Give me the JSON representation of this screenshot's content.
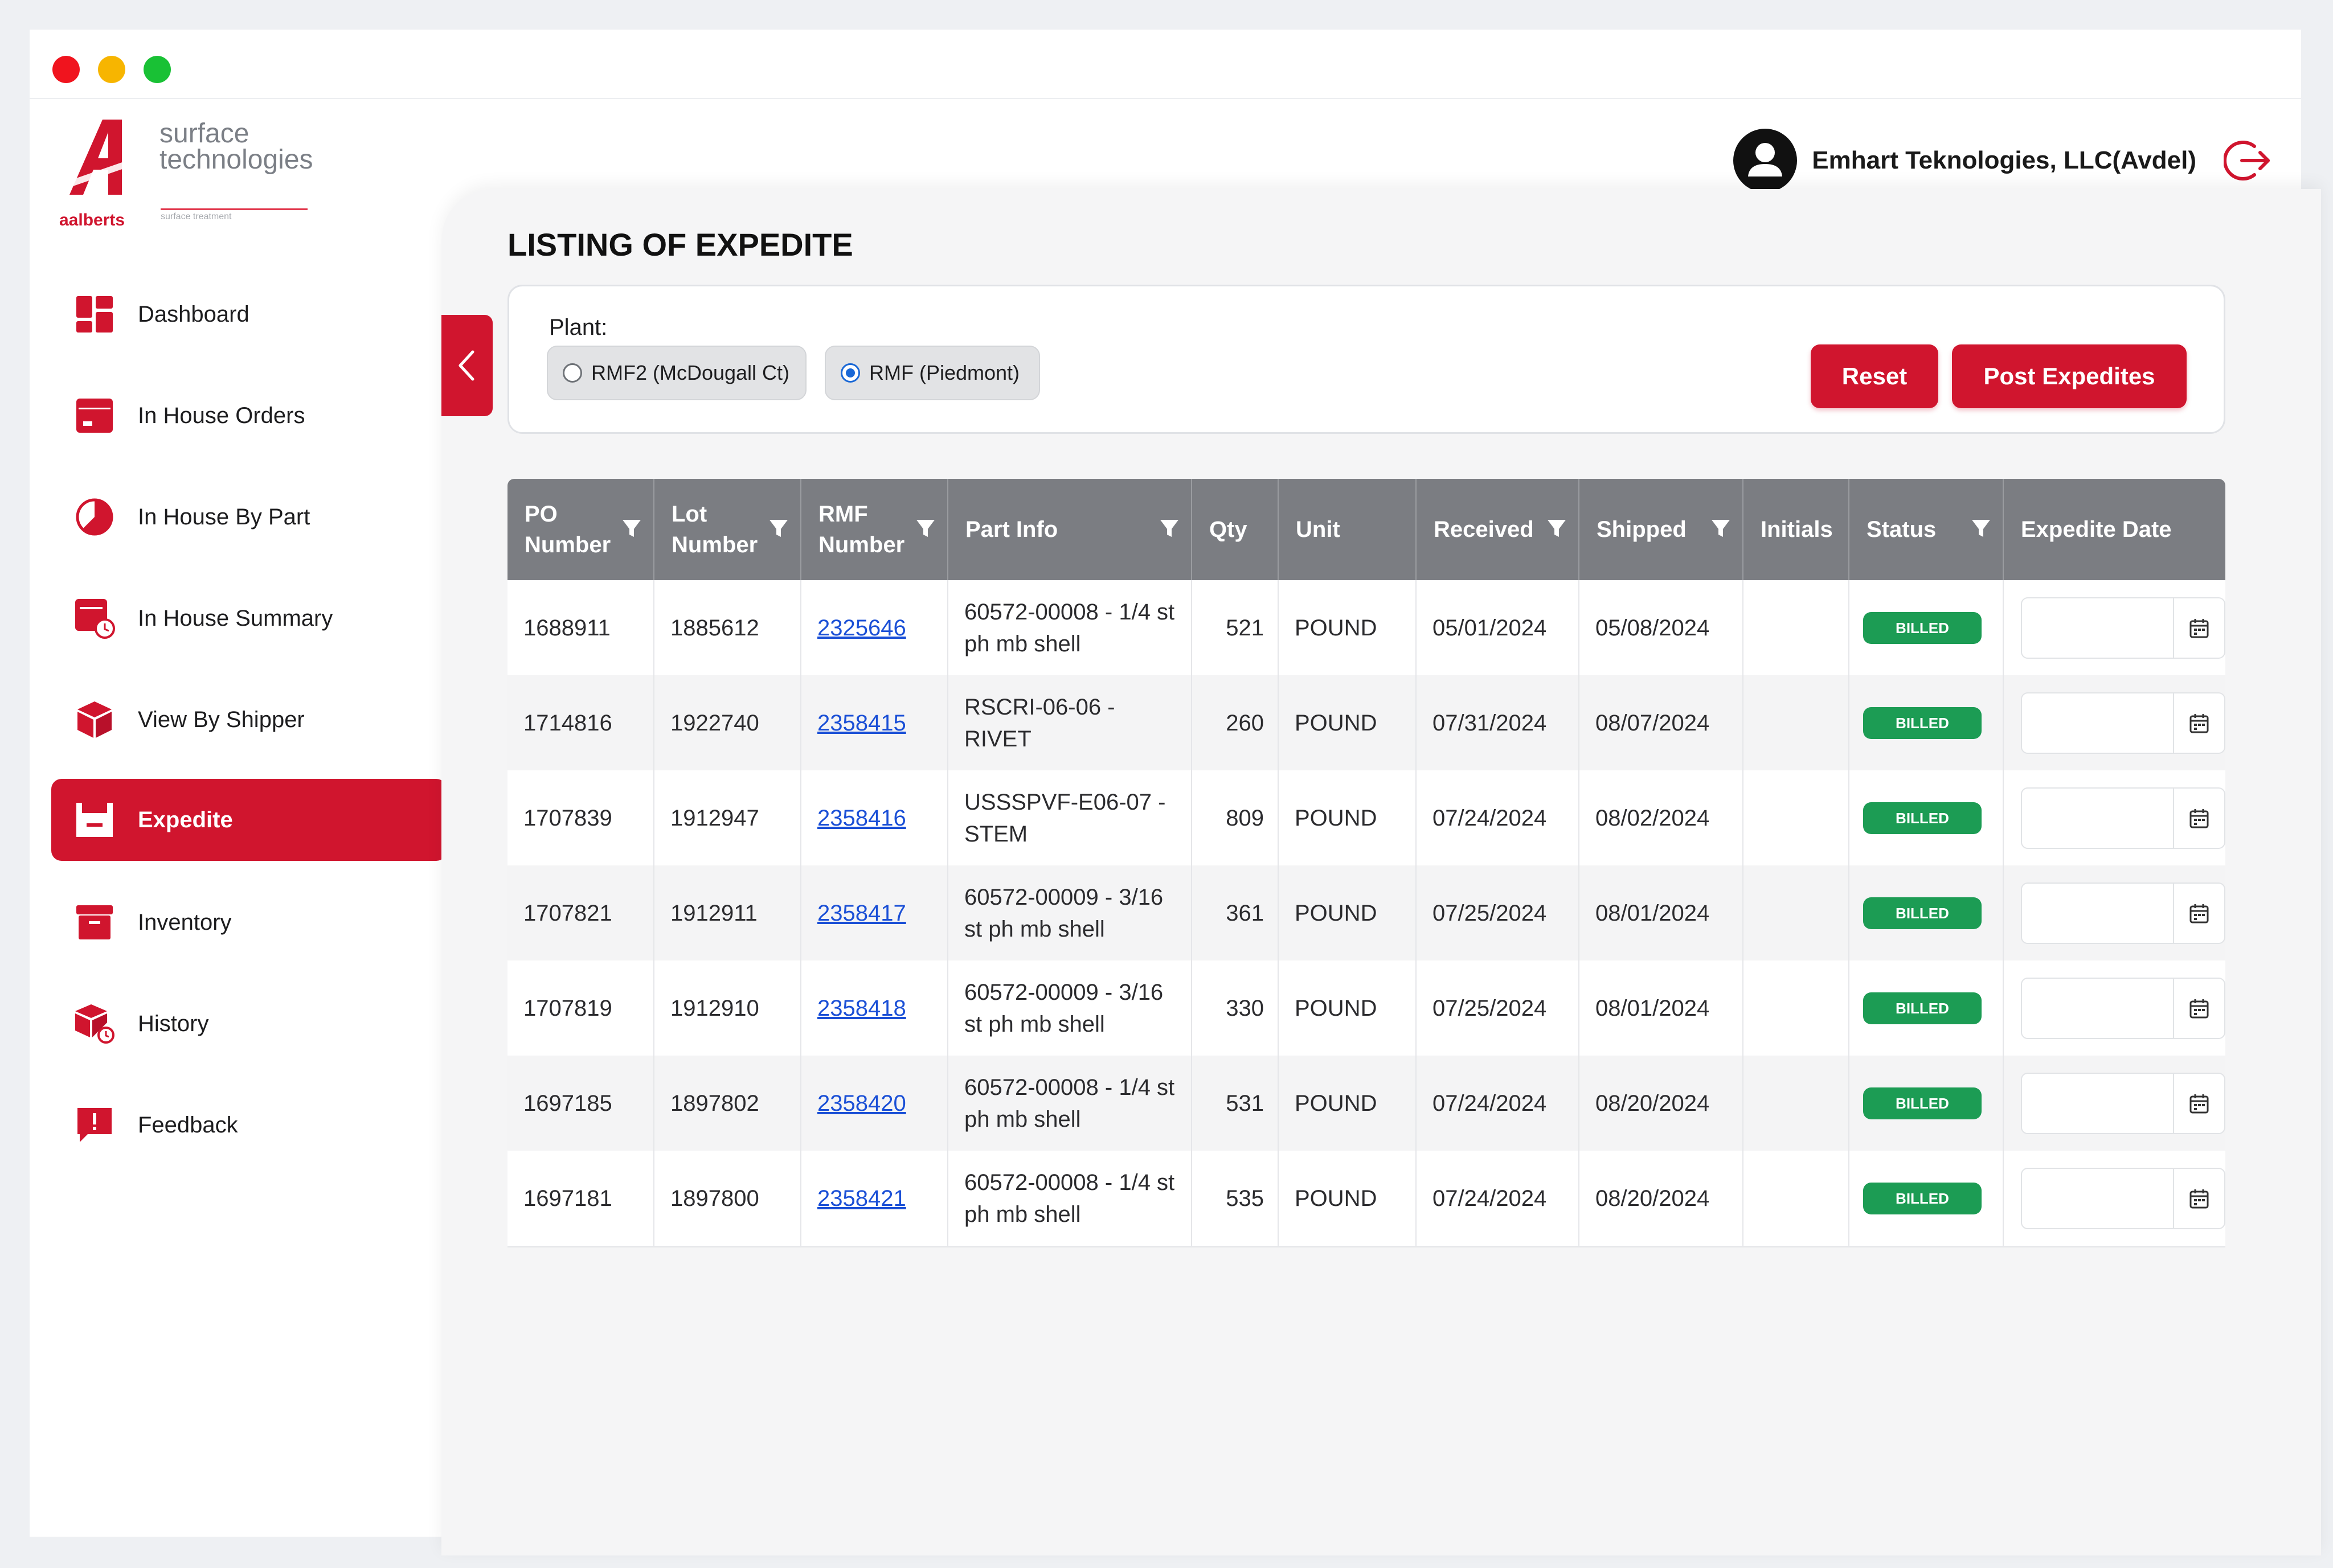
{
  "app": {
    "brand": "aalberts",
    "logo_line1": "surface",
    "logo_line2": "technologies",
    "logo_sub": "surface treatment",
    "company": "Emhart Teknologies, LLC(Avdel)",
    "accent": "#d0152e"
  },
  "sidebar": {
    "items": [
      {
        "label": "Dashboard",
        "icon": "dashboard-icon",
        "active": false
      },
      {
        "label": "In House Orders",
        "icon": "orders-box-icon",
        "active": false
      },
      {
        "label": "In House By Part",
        "icon": "pie-chart-icon",
        "active": false
      },
      {
        "label": "In House Summary",
        "icon": "summary-clock-icon",
        "active": false
      },
      {
        "label": "View By Shipper",
        "icon": "package-cube-icon",
        "active": false
      },
      {
        "label": "Expedite",
        "icon": "basket-icon",
        "active": true
      },
      {
        "label": "Inventory",
        "icon": "archive-box-icon",
        "active": false
      },
      {
        "label": "History",
        "icon": "history-cube-icon",
        "active": false
      },
      {
        "label": "Feedback",
        "icon": "feedback-alert-icon",
        "active": false
      }
    ]
  },
  "page": {
    "title": "LISTING OF EXPEDITE",
    "plant_label": "Plant:",
    "plant_options": [
      {
        "label": "RMF2 (McDougall Ct)",
        "selected": false
      },
      {
        "label": "RMF (Piedmont)",
        "selected": true
      }
    ],
    "reset_label": "Reset",
    "post_label": "Post Expedites"
  },
  "table": {
    "columns": [
      {
        "label": "PO Number",
        "filter": true
      },
      {
        "label": "Lot Number",
        "filter": true
      },
      {
        "label": "RMF Number",
        "filter": true
      },
      {
        "label": "Part Info",
        "filter": true
      },
      {
        "label": "Qty",
        "filter": false
      },
      {
        "label": "Unit",
        "filter": false
      },
      {
        "label": "Received",
        "filter": true
      },
      {
        "label": "Shipped",
        "filter": true
      },
      {
        "label": "Initials",
        "filter": false
      },
      {
        "label": "Status",
        "filter": true
      },
      {
        "label": "Expedite Date",
        "filter": false
      }
    ],
    "rows": [
      {
        "po": "1688911",
        "lot": "1885612",
        "rmf": "2325646",
        "part": "60572-00008 - 1/4 st ph mb shell",
        "qty": "521",
        "unit": "POUND",
        "received": "05/01/2024",
        "shipped": "05/08/2024",
        "initials": "",
        "status": "BILLED",
        "expedite_date": ""
      },
      {
        "po": "1714816",
        "lot": "1922740",
        "rmf": "2358415",
        "part": "RSCRI-06-06 - RIVET",
        "qty": "260",
        "unit": "POUND",
        "received": "07/31/2024",
        "shipped": "08/07/2024",
        "initials": "",
        "status": "BILLED",
        "expedite_date": ""
      },
      {
        "po": "1707839",
        "lot": "1912947",
        "rmf": "2358416",
        "part": "USSSPVF-E06-07 - STEM",
        "qty": "809",
        "unit": "POUND",
        "received": "07/24/2024",
        "shipped": "08/02/2024",
        "initials": "",
        "status": "BILLED",
        "expedite_date": ""
      },
      {
        "po": "1707821",
        "lot": "1912911",
        "rmf": "2358417",
        "part": "60572-00009 - 3/16 st ph mb shell",
        "qty": "361",
        "unit": "POUND",
        "received": "07/25/2024",
        "shipped": "08/01/2024",
        "initials": "",
        "status": "BILLED",
        "expedite_date": ""
      },
      {
        "po": "1707819",
        "lot": "1912910",
        "rmf": "2358418",
        "part": "60572-00009 - 3/16 st ph mb shell",
        "qty": "330",
        "unit": "POUND",
        "received": "07/25/2024",
        "shipped": "08/01/2024",
        "initials": "",
        "status": "BILLED",
        "expedite_date": ""
      },
      {
        "po": "1697185",
        "lot": "1897802",
        "rmf": "2358420",
        "part": "60572-00008 - 1/4 st ph mb shell",
        "qty": "531",
        "unit": "POUND",
        "received": "07/24/2024",
        "shipped": "08/20/2024",
        "initials": "",
        "status": "BILLED",
        "expedite_date": ""
      },
      {
        "po": "1697181",
        "lot": "1897800",
        "rmf": "2358421",
        "part": "60572-00008 - 1/4 st ph mb shell",
        "qty": "535",
        "unit": "POUND",
        "received": "07/24/2024",
        "shipped": "08/20/2024",
        "initials": "",
        "status": "BILLED",
        "expedite_date": ""
      }
    ],
    "status_color": "#1c9c54",
    "header_color": "#7b7d82"
  }
}
